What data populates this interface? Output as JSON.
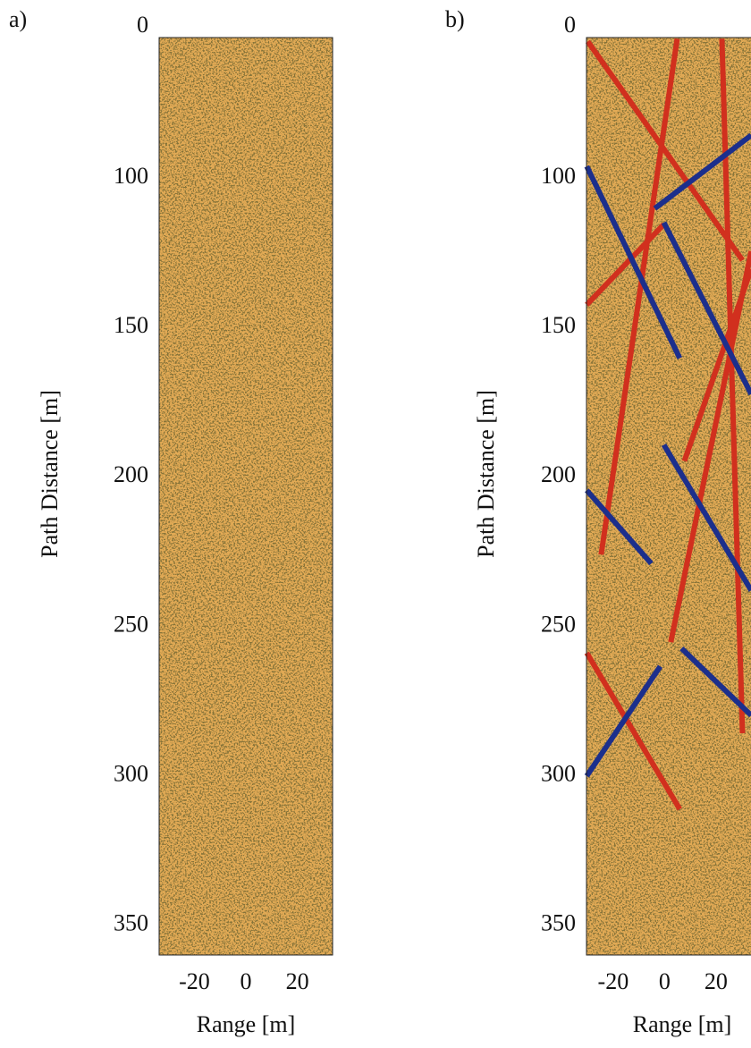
{
  "chart_data": [
    {
      "type": "image",
      "panel_label": "a)",
      "xlabel": "Range [m]",
      "ylabel": "Path Distance [m]",
      "xlim": [
        -33.7,
        33.7
      ],
      "xticks": [
        -20,
        0,
        20
      ],
      "ylim": [
        53,
        360
      ],
      "yticks": [
        0,
        100,
        150,
        200,
        250,
        300,
        350
      ]
    },
    {
      "type": "image",
      "panel_label": "b)",
      "xlabel": "Range [m]",
      "ylabel": "Path Distance [m]",
      "xlim": [
        -30.4,
        37.1
      ],
      "xticks": [
        -20,
        0,
        20
      ],
      "ylim": [
        53,
        360
      ],
      "yticks": [
        0,
        100,
        150,
        200,
        250,
        300,
        350
      ],
      "lines": [
        {
          "color": "#d1301e",
          "x": [
            -29.9,
            30.3
          ],
          "y": [
            54.3,
            127.5
          ]
        },
        {
          "color": "#d1301e",
          "x": [
            4.9,
            -24.7
          ],
          "y": [
            53.4,
            226
          ]
        },
        {
          "color": "#d1301e",
          "x": [
            22.3,
            30.3
          ],
          "y": [
            53.4,
            285.8
          ]
        },
        {
          "color": "#d1301e",
          "x": [
            -30.3,
            -0.3
          ],
          "y": [
            142.4,
            115.5
          ]
        },
        {
          "color": "#d1301e",
          "x": [
            2.4,
            33.7
          ],
          "y": [
            255.3,
            124.5
          ]
        },
        {
          "color": "#d1301e",
          "x": [
            7.7,
            33.7
          ],
          "y": [
            194.7,
            130.5
          ]
        },
        {
          "color": "#d1301e",
          "x": [
            -30.3,
            5.9
          ],
          "y": [
            258.9,
            311.2
          ]
        },
        {
          "color": "#1c2f8c",
          "x": [
            -3.8,
            33.7
          ],
          "y": [
            110.2,
            85.7
          ]
        },
        {
          "color": "#1c2f8c",
          "x": [
            -30.3,
            5.9
          ],
          "y": [
            96.1,
            160.3
          ]
        },
        {
          "color": "#1c2f8c",
          "x": [
            -0.3,
            33.7
          ],
          "y": [
            114.9,
            172.3
          ]
        },
        {
          "color": "#1c2f8c",
          "x": [
            -0.3,
            33.7
          ],
          "y": [
            189.3,
            238
          ]
        },
        {
          "color": "#1c2f8c",
          "x": [
            -30.3,
            -5.2
          ],
          "y": [
            204.5,
            229
          ]
        },
        {
          "color": "#1c2f8c",
          "x": [
            6.6,
            33.7
          ],
          "y": [
            257.4,
            279.8
          ]
        },
        {
          "color": "#1c2f8c",
          "x": [
            -30.3,
            -1.7
          ],
          "y": [
            300.1,
            263.4
          ]
        }
      ]
    }
  ]
}
